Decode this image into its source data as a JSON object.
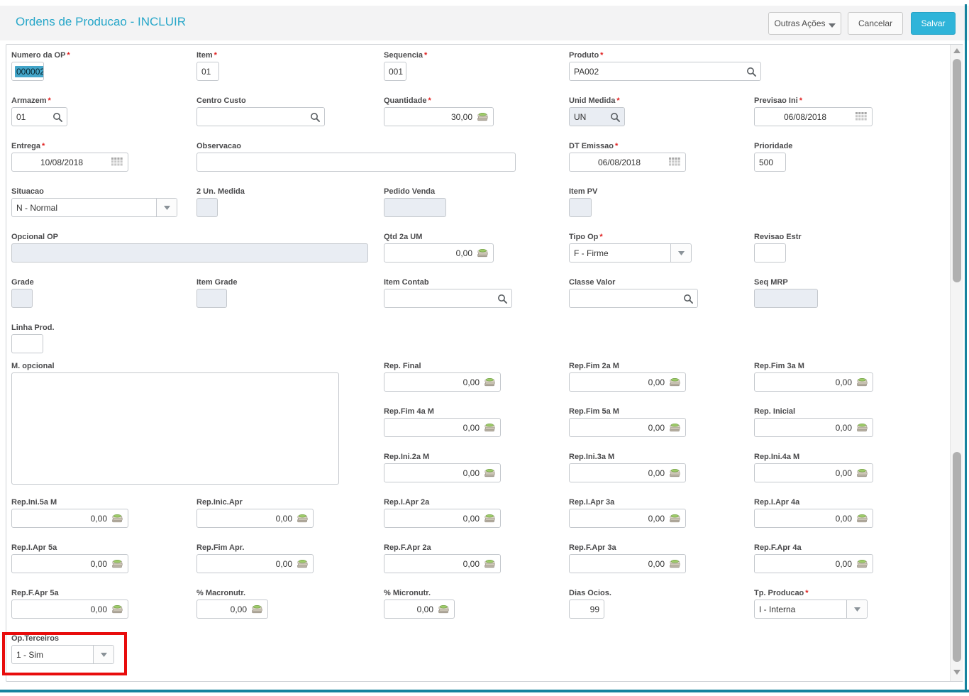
{
  "header": {
    "title": "Ordens de Producao - INCLUIR",
    "buttons": {
      "outras_acoes": "Outras Ações",
      "cancelar": "Cancelar",
      "salvar": "Salvar"
    }
  },
  "colors": {
    "title_teal": "#28a7c9",
    "save_button_teal": "#2fb4d9",
    "required_red": "#e01e1e",
    "annotation_red": "#e80c0c",
    "panel_edge_teal": "#15839e",
    "text_selection": "#43a5c9",
    "disabled_field_bg": "#e9edf3"
  },
  "icons": {
    "search": "magnifier-icon",
    "date": "calendar-icon",
    "money": "banknote-stack-icon",
    "select": "caret-down-icon"
  },
  "form": {
    "fields": {
      "numero_op": {
        "label": "Numero da OP",
        "required": true,
        "value": "000002",
        "type": "text",
        "state": "selected"
      },
      "item": {
        "label": "Item",
        "required": true,
        "value": "01",
        "type": "text"
      },
      "sequencia": {
        "label": "Sequencia",
        "required": true,
        "value": "001",
        "type": "text"
      },
      "produto": {
        "label": "Produto",
        "required": true,
        "value": "PA002",
        "type": "search"
      },
      "armazem": {
        "label": "Armazem",
        "required": true,
        "value": "01",
        "type": "search"
      },
      "centro_custo": {
        "label": "Centro Custo",
        "required": false,
        "value": "",
        "type": "search"
      },
      "quantidade": {
        "label": "Quantidade",
        "required": true,
        "value": "30,00",
        "type": "money"
      },
      "unid_medida": {
        "label": "Unid Medida",
        "required": true,
        "value": "UN",
        "type": "search",
        "state": "disabled"
      },
      "previsao_ini": {
        "label": "Previsao Ini",
        "required": true,
        "value": "06/08/2018",
        "type": "date"
      },
      "entrega": {
        "label": "Entrega",
        "required": true,
        "value": "10/08/2018",
        "type": "date"
      },
      "observacao": {
        "label": "Observacao",
        "required": false,
        "value": "",
        "type": "text"
      },
      "dt_emissao": {
        "label": "DT Emissao",
        "required": true,
        "value": "06/08/2018",
        "type": "date"
      },
      "prioridade": {
        "label": "Prioridade",
        "required": false,
        "value": "500",
        "type": "text"
      },
      "situacao": {
        "label": "Situacao",
        "required": false,
        "value": "N - Normal",
        "type": "select"
      },
      "un2_medida": {
        "label": "2 Un. Medida",
        "required": false,
        "value": "",
        "type": "text",
        "state": "disabled"
      },
      "pedido_venda": {
        "label": "Pedido Venda",
        "required": false,
        "value": "",
        "type": "text",
        "state": "disabled"
      },
      "item_pv": {
        "label": "Item PV",
        "required": false,
        "value": "",
        "type": "text",
        "state": "disabled"
      },
      "opcional_op": {
        "label": "Opcional OP",
        "required": false,
        "value": "",
        "type": "text",
        "state": "disabled"
      },
      "qtd_2a_um": {
        "label": "Qtd 2a UM",
        "required": false,
        "value": "0,00",
        "type": "money"
      },
      "tipo_op": {
        "label": "Tipo Op",
        "required": true,
        "value": "F - Firme",
        "type": "select"
      },
      "revisao_estr": {
        "label": "Revisao Estr",
        "required": false,
        "value": "",
        "type": "text"
      },
      "grade": {
        "label": "Grade",
        "required": false,
        "value": "",
        "type": "text",
        "state": "disabled"
      },
      "item_grade": {
        "label": "Item Grade",
        "required": false,
        "value": "",
        "type": "text",
        "state": "disabled"
      },
      "item_contab": {
        "label": "Item Contab",
        "required": false,
        "value": "",
        "type": "search"
      },
      "classe_valor": {
        "label": "Classe Valor",
        "required": false,
        "value": "",
        "type": "search"
      },
      "seq_mrp": {
        "label": "Seq MRP",
        "required": false,
        "value": "",
        "type": "text",
        "state": "disabled"
      },
      "linha_prod": {
        "label": "Linha Prod.",
        "required": false,
        "value": "",
        "type": "text"
      },
      "m_opcional": {
        "label": "M. opcional",
        "required": false,
        "value": "",
        "type": "textarea"
      },
      "rep_final": {
        "label": "Rep. Final",
        "required": false,
        "value": "0,00",
        "type": "money"
      },
      "rep_fim_2a_m": {
        "label": "Rep.Fim 2a M",
        "required": false,
        "value": "0,00",
        "type": "money"
      },
      "rep_fim_3a_m": {
        "label": "Rep.Fim 3a M",
        "required": false,
        "value": "0,00",
        "type": "money"
      },
      "rep_fim_4a_m": {
        "label": "Rep.Fim 4a M",
        "required": false,
        "value": "0,00",
        "type": "money"
      },
      "rep_fim_5a_m": {
        "label": "Rep.Fim 5a M",
        "required": false,
        "value": "0,00",
        "type": "money"
      },
      "rep_inicial": {
        "label": "Rep. Inicial",
        "required": false,
        "value": "0,00",
        "type": "money"
      },
      "rep_ini_2a_m": {
        "label": "Rep.Ini.2a M",
        "required": false,
        "value": "0,00",
        "type": "money"
      },
      "rep_ini_3a_m": {
        "label": "Rep.Ini.3a M",
        "required": false,
        "value": "0,00",
        "type": "money"
      },
      "rep_ini_4a_m": {
        "label": "Rep.Ini.4a M",
        "required": false,
        "value": "0,00",
        "type": "money"
      },
      "rep_ini_5a_m": {
        "label": "Rep.Ini.5a M",
        "required": false,
        "value": "0,00",
        "type": "money"
      },
      "rep_inic_apr": {
        "label": "Rep.Inic.Apr",
        "required": false,
        "value": "0,00",
        "type": "money"
      },
      "rep_i_apr_2a": {
        "label": "Rep.I.Apr 2a",
        "required": false,
        "value": "0,00",
        "type": "money"
      },
      "rep_i_apr_3a": {
        "label": "Rep.I.Apr 3a",
        "required": false,
        "value": "0,00",
        "type": "money"
      },
      "rep_i_apr_4a": {
        "label": "Rep.I.Apr 4a",
        "required": false,
        "value": "0,00",
        "type": "money"
      },
      "rep_i_apr_5a": {
        "label": "Rep.I.Apr 5a",
        "required": false,
        "value": "0,00",
        "type": "money"
      },
      "rep_fim_apr": {
        "label": "Rep.Fim Apr.",
        "required": false,
        "value": "0,00",
        "type": "money"
      },
      "rep_f_apr_2a": {
        "label": "Rep.F.Apr 2a",
        "required": false,
        "value": "0,00",
        "type": "money"
      },
      "rep_f_apr_3a": {
        "label": "Rep.F.Apr 3a",
        "required": false,
        "value": "0,00",
        "type": "money"
      },
      "rep_f_apr_4a": {
        "label": "Rep.F.Apr 4a",
        "required": false,
        "value": "0,00",
        "type": "money"
      },
      "rep_f_apr_5a": {
        "label": "Rep.F.Apr 5a",
        "required": false,
        "value": "0,00",
        "type": "money"
      },
      "macronutr": {
        "label": "% Macronutr.",
        "required": false,
        "value": "0,00",
        "type": "money"
      },
      "micronutr": {
        "label": "% Micronutr.",
        "required": false,
        "value": "0,00",
        "type": "money"
      },
      "dias_ocios": {
        "label": "Dias Ocios.",
        "required": false,
        "value": "99",
        "type": "num"
      },
      "tp_producao": {
        "label": "Tp. Producao",
        "required": true,
        "value": "I - Interna",
        "type": "select"
      },
      "op_terceiros": {
        "label": "Op.Terceiros",
        "required": false,
        "value": "1 - Sim",
        "type": "select"
      }
    }
  }
}
